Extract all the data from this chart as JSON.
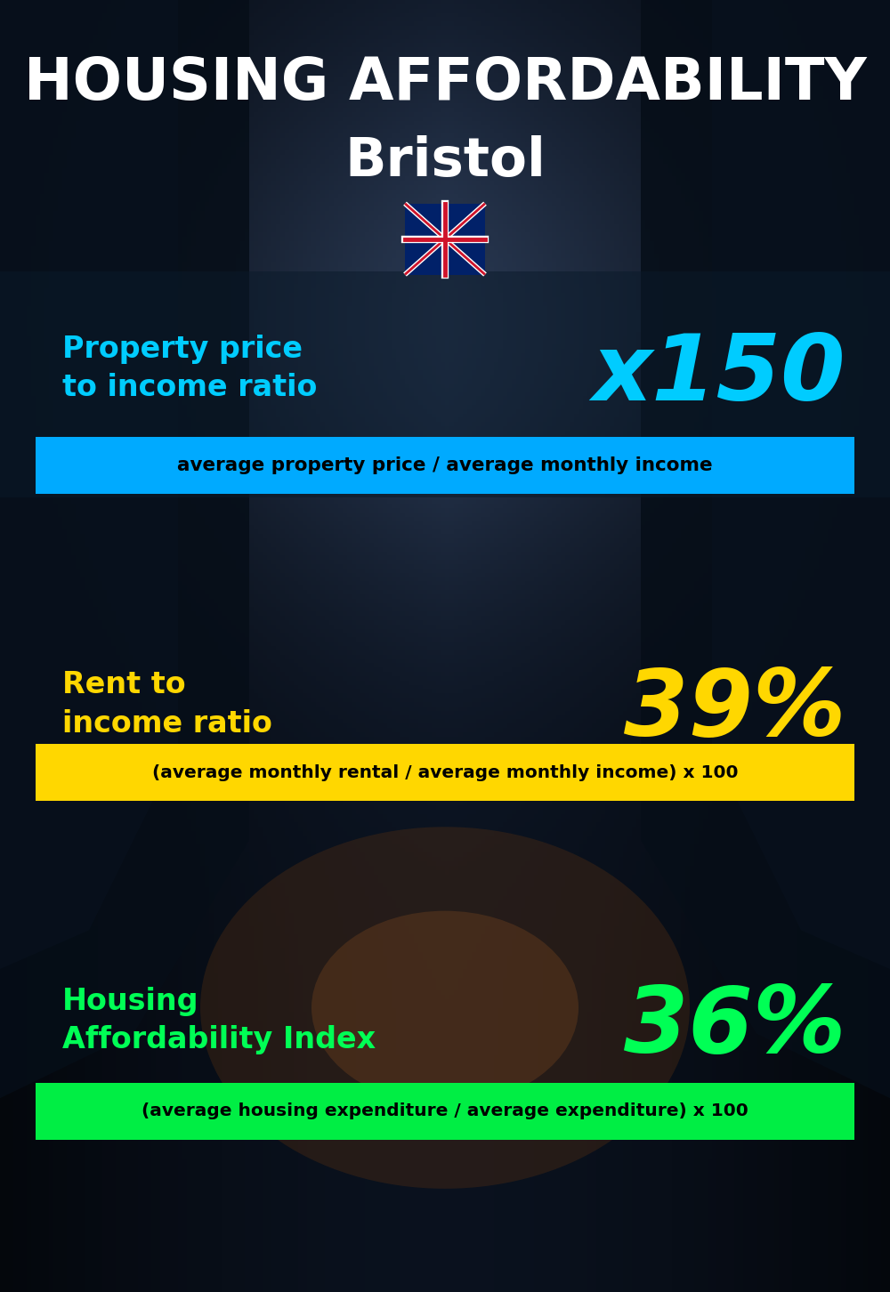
{
  "title_main": "HOUSING AFFORDABILITY",
  "title_city": "Bristol",
  "section1_label": "Property price\nto income ratio",
  "section1_value": "x150",
  "section1_label_color": "#00CCFF",
  "section1_value_color": "#00CCFF",
  "section1_banner": "average property price / average monthly income",
  "section1_banner_bg": "#00AAFF",
  "section2_label": "Rent to\nincome ratio",
  "section2_value": "39%",
  "section2_label_color": "#FFD700",
  "section2_value_color": "#FFD700",
  "section2_banner": "(average monthly rental / average monthly income) x 100",
  "section2_banner_bg": "#FFD700",
  "section3_label": "Housing\nAffordability Index",
  "section3_value": "36%",
  "section3_label_color": "#00FF55",
  "section3_value_color": "#00FF55",
  "section3_banner": "(average housing expenditure / average expenditure) x 100",
  "section3_banner_bg": "#00EE44",
  "bg_color": "#0a1520",
  "title_color": "#FFFFFF",
  "city_color": "#FFFFFF",
  "banner_text_color": "#000000",
  "fig_width": 10.0,
  "fig_height": 14.52,
  "dpi": 100
}
